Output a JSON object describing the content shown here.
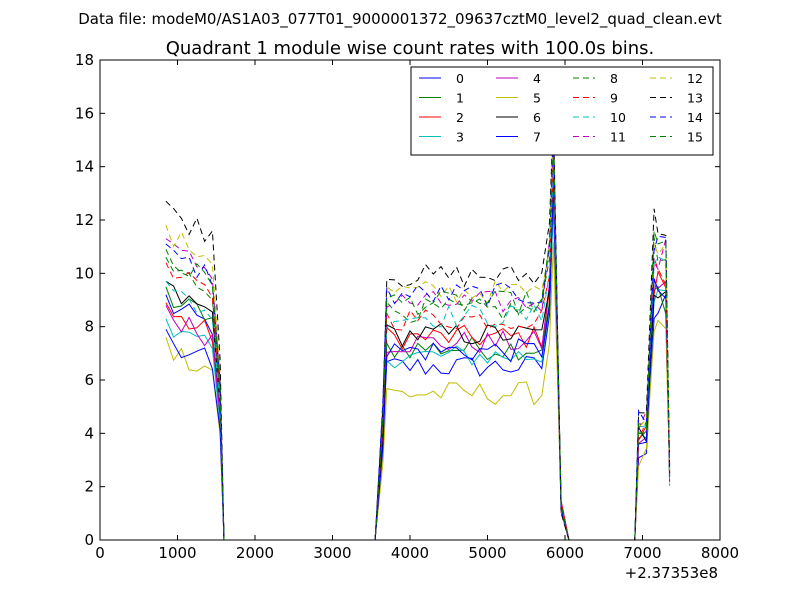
{
  "chart_data": {
    "type": "line",
    "suptitle": "Data file: modeM0/AS1A03_077T01_9000001372_09637cztM0_level2_quad_clean.evt",
    "title": "Quadrant 1 module wise count rates with 100.0s bins.",
    "xlabel": "",
    "ylabel": "",
    "x_offset_label": "+2.37353e8",
    "xlim": [
      0,
      8000
    ],
    "ylim": [
      0,
      18
    ],
    "x_ticks": [
      0,
      1000,
      2000,
      3000,
      4000,
      5000,
      6000,
      7000,
      8000
    ],
    "y_ticks": [
      0,
      2,
      4,
      6,
      8,
      10,
      12,
      14,
      16,
      18
    ],
    "grid": false,
    "legend_position": "top-right",
    "legend_columns": 4,
    "series": [
      {
        "name": "0",
        "color": "#0000ff",
        "style": "solid",
        "levels": [
          8.8,
          6.5
        ]
      },
      {
        "name": "1",
        "color": "#008000",
        "style": "solid",
        "levels": [
          9.1,
          7.2
        ]
      },
      {
        "name": "2",
        "color": "#ff0000",
        "style": "solid",
        "levels": [
          8.5,
          7.6
        ]
      },
      {
        "name": "3",
        "color": "#00bfbf",
        "style": "solid",
        "levels": [
          7.9,
          6.9
        ]
      },
      {
        "name": "4",
        "color": "#bf00bf",
        "style": "solid",
        "levels": [
          8.4,
          7.4
        ]
      },
      {
        "name": "5",
        "color": "#bfbf00",
        "style": "solid",
        "levels": [
          7.2,
          5.5
        ]
      },
      {
        "name": "6",
        "color": "#000000",
        "style": "solid",
        "levels": [
          9.3,
          7.7
        ]
      },
      {
        "name": "7",
        "color": "#0000ff",
        "style": "solid",
        "levels": [
          7.5,
          7.1
        ]
      },
      {
        "name": "8",
        "color": "#008000",
        "style": "dashed",
        "levels": [
          10.2,
          8.6
        ]
      },
      {
        "name": "9",
        "color": "#ff0000",
        "style": "dashed",
        "levels": [
          10.0,
          8.3
        ]
      },
      {
        "name": "10",
        "color": "#00bfbf",
        "style": "dashed",
        "levels": [
          9.3,
          8.4
        ]
      },
      {
        "name": "11",
        "color": "#bf00bf",
        "style": "dashed",
        "levels": [
          10.9,
          8.9
        ]
      },
      {
        "name": "12",
        "color": "#bfbf00",
        "style": "dashed",
        "levels": [
          11.4,
          9.3
        ]
      },
      {
        "name": "13",
        "color": "#000000",
        "style": "dashed",
        "levels": [
          12.3,
          9.9
        ]
      },
      {
        "name": "14",
        "color": "#0000ff",
        "style": "dashed",
        "levels": [
          10.7,
          9.2
        ]
      },
      {
        "name": "15",
        "color": "#008000",
        "style": "dashed",
        "levels": [
          10.5,
          8.9
        ]
      }
    ],
    "x_bins": [
      850,
      950,
      1050,
      1150,
      1250,
      1350,
      1450,
      1550,
      1600,
      3550,
      3650,
      3700,
      3800,
      3900,
      4000,
      4100,
      4200,
      4300,
      4400,
      4500,
      4600,
      4700,
      4800,
      4900,
      5000,
      5100,
      5200,
      5300,
      5400,
      5500,
      5600,
      5700,
      5800,
      5850,
      5950,
      6050,
      6100,
      6900,
      6950,
      7050,
      7150,
      7200,
      7300,
      7350
    ]
  }
}
